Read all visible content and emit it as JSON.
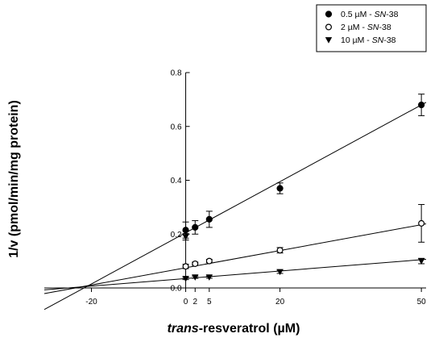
{
  "chart_data": {
    "type": "scatter",
    "xlabel_italic": "trans",
    "xlabel_rest": "-resveratrol (µM)",
    "ylabel": "1/v (pmol/min/mg protein)",
    "xlim": [
      -30,
      51
    ],
    "ylim": [
      0,
      0.8
    ],
    "x_ticks": [
      -20,
      0,
      2,
      5,
      20,
      50
    ],
    "y_ticks": [
      0.0,
      0.2,
      0.4,
      0.6,
      0.8
    ],
    "y_tick_labels": [
      "0.0",
      "0.2",
      "0.4",
      "0.6",
      "0.8"
    ],
    "x_tick_labels": [
      "-20",
      "0",
      "2",
      "5",
      "20",
      "50"
    ],
    "legend_position": "top-right",
    "series": [
      {
        "name_prefix": "0.5 µM - ",
        "name_italic": "SN",
        "name_suffix": "-38",
        "marker": "filled-circle",
        "x": [
          0,
          2,
          5,
          20,
          50
        ],
        "y": [
          0.215,
          0.225,
          0.255,
          0.37,
          0.68
        ],
        "err": [
          0.03,
          0.025,
          0.03,
          0.02,
          0.04
        ],
        "fit": {
          "slope": 0.0095,
          "intercept": 0.205
        }
      },
      {
        "name_prefix": "2 µM - ",
        "name_italic": "SN",
        "name_suffix": "-38",
        "marker": "open-circle",
        "x": [
          0,
          2,
          5,
          20,
          50
        ],
        "y": [
          0.08,
          0.09,
          0.1,
          0.14,
          0.24
        ],
        "err": [
          0.008,
          0.006,
          0.006,
          0.01,
          0.07
        ],
        "fit": {
          "slope": 0.0032,
          "intercept": 0.075
        }
      },
      {
        "name_prefix": "10 µM - ",
        "name_italic": "SN",
        "name_suffix": "-38",
        "marker": "filled-triangle-down",
        "x": [
          0,
          2,
          5,
          20,
          50
        ],
        "y": [
          0.035,
          0.04,
          0.04,
          0.06,
          0.1
        ],
        "err": [
          0.004,
          0.004,
          0.004,
          0.006,
          0.01
        ],
        "fit": {
          "slope": 0.0014,
          "intercept": 0.035
        }
      }
    ],
    "extra_point": {
      "x": 0,
      "y": 0.19,
      "err": 0.012,
      "marker": "filled-triangle-down"
    }
  }
}
